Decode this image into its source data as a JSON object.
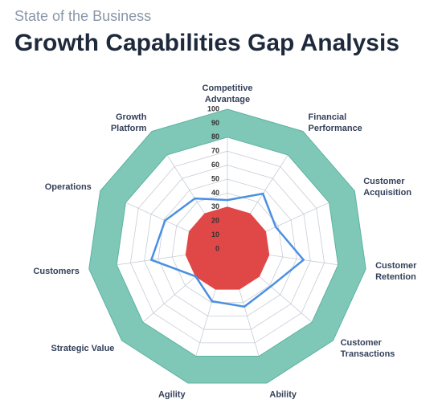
{
  "chart_data": {
    "type": "radar",
    "subtitle": "State of the Business",
    "title": "Growth Capabilities Gap Analysis",
    "categories": [
      "Competitive\nAdvantage",
      "Financial\nPerformance",
      "Customer\nAcquisition",
      "Customer\nRetention",
      "Customer\nTransactions",
      "Ability",
      "Agility",
      "Strategic Value",
      "Customers",
      "Operations",
      "Growth\nPlatform"
    ],
    "rlim": [
      0,
      100
    ],
    "rticks": [
      0,
      10,
      20,
      30,
      40,
      50,
      60,
      70,
      80,
      90,
      100
    ],
    "grid": true,
    "series": [
      {
        "kind": "band",
        "color": "#7fc8b8",
        "values": [
          100,
          100,
          100,
          100,
          100,
          100,
          100,
          100,
          100,
          100,
          100
        ],
        "lower": [
          80,
          80,
          80,
          80,
          80,
          80,
          80,
          80,
          80,
          80,
          80
        ]
      },
      {
        "kind": "area",
        "color": "#e04848",
        "values": [
          30,
          30,
          30,
          30,
          30,
          30,
          30,
          30,
          30,
          30,
          30
        ]
      },
      {
        "kind": "line",
        "color": "#4a90e2",
        "values": [
          35,
          47,
          38,
          55,
          41,
          43,
          39,
          30,
          55,
          49,
          43
        ]
      }
    ]
  }
}
